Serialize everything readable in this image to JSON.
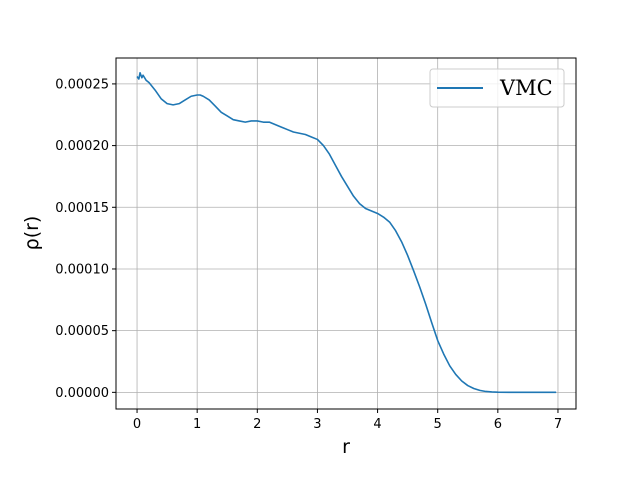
{
  "chart_data": {
    "type": "line",
    "title": "",
    "xlabel": "r",
    "ylabel": "ρ(r)",
    "xlim": [
      -0.35,
      7.3
    ],
    "ylim": [
      -1.35e-05,
      0.000271
    ],
    "xticks": [
      0,
      1,
      2,
      3,
      4,
      5,
      6,
      7
    ],
    "xtick_labels": [
      "0",
      "1",
      "2",
      "3",
      "4",
      "5",
      "6",
      "7"
    ],
    "yticks": [
      0,
      5e-05,
      0.0001,
      0.00015,
      0.0002,
      0.00025
    ],
    "ytick_labels": [
      "0.00000",
      "0.00005",
      "0.00010",
      "0.00015",
      "0.00020",
      "0.00025"
    ],
    "grid": true,
    "legend_position": "top-right",
    "series": [
      {
        "name": "VMC",
        "color": "#1f77b4",
        "x": [
          0,
          0.03,
          0.05,
          0.08,
          0.1,
          0.15,
          0.2,
          0.3,
          0.4,
          0.5,
          0.6,
          0.7,
          0.8,
          0.9,
          1.0,
          1.05,
          1.1,
          1.2,
          1.3,
          1.4,
          1.5,
          1.6,
          1.7,
          1.8,
          1.9,
          2.0,
          2.1,
          2.2,
          2.3,
          2.4,
          2.5,
          2.6,
          2.7,
          2.8,
          2.9,
          3.0,
          3.1,
          3.2,
          3.3,
          3.4,
          3.5,
          3.6,
          3.7,
          3.8,
          3.9,
          4.0,
          4.1,
          4.2,
          4.3,
          4.4,
          4.5,
          4.6,
          4.7,
          4.8,
          4.9,
          5.0,
          5.1,
          5.2,
          5.3,
          5.4,
          5.5,
          5.6,
          5.7,
          5.8,
          5.9,
          6.0,
          6.2,
          6.4,
          6.6,
          6.8,
          6.97
        ],
        "y": [
          0.000256,
          0.000254,
          0.000259,
          0.000255,
          0.000257,
          0.000253,
          0.000251,
          0.000245,
          0.000238,
          0.000234,
          0.000233,
          0.000234,
          0.000237,
          0.00024,
          0.000241,
          0.000241,
          0.00024,
          0.000237,
          0.000232,
          0.000227,
          0.000224,
          0.000221,
          0.00022,
          0.000219,
          0.00022,
          0.00022,
          0.000219,
          0.000219,
          0.000217,
          0.000215,
          0.000213,
          0.000211,
          0.00021,
          0.000209,
          0.000207,
          0.000205,
          0.0002,
          0.000193,
          0.000184,
          0.000175,
          0.000167,
          0.000159,
          0.000153,
          0.000149,
          0.000147,
          0.000145,
          0.000142,
          0.000138,
          0.000131,
          0.000122,
          0.000111,
          9.85e-05,
          8.55e-05,
          7.15e-05,
          5.65e-05,
          4.2e-05,
          3.1e-05,
          2.15e-05,
          1.45e-05,
          9.2e-06,
          5.5e-06,
          3.1e-06,
          1.6e-06,
          7e-07,
          3e-07,
          1e-07,
          5e-08,
          2e-08,
          0,
          0,
          0
        ]
      }
    ]
  }
}
